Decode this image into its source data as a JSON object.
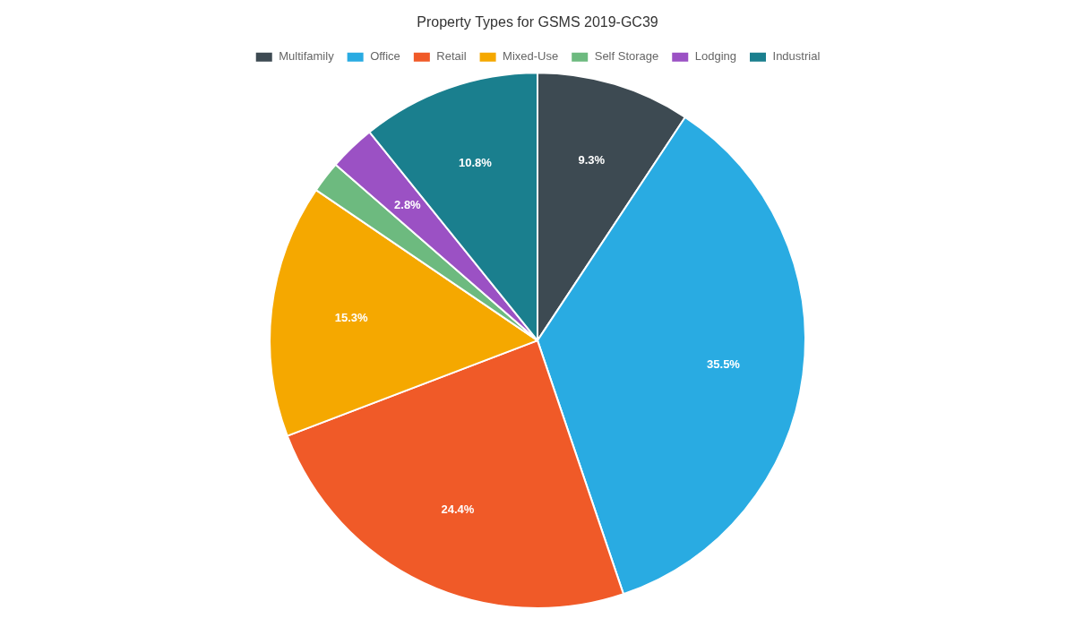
{
  "chart_data": {
    "type": "pie",
    "title": "Property Types for GSMS 2019-GC39",
    "categories": [
      "Multifamily",
      "Office",
      "Retail",
      "Mixed-Use",
      "Self Storage",
      "Lodging",
      "Industrial"
    ],
    "values": [
      9.3,
      35.5,
      24.4,
      15.3,
      1.9,
      2.8,
      10.8
    ],
    "value_labels": [
      "9.3%",
      "35.5%",
      "24.4%",
      "15.3%",
      null,
      "2.8%",
      "10.8%"
    ],
    "colors": [
      "#3d4a52",
      "#29abe2",
      "#f05a28",
      "#f5a800",
      "#6dba7f",
      "#9b51c4",
      "#1a7f8e"
    ],
    "data_labels": true,
    "legend": "top"
  }
}
